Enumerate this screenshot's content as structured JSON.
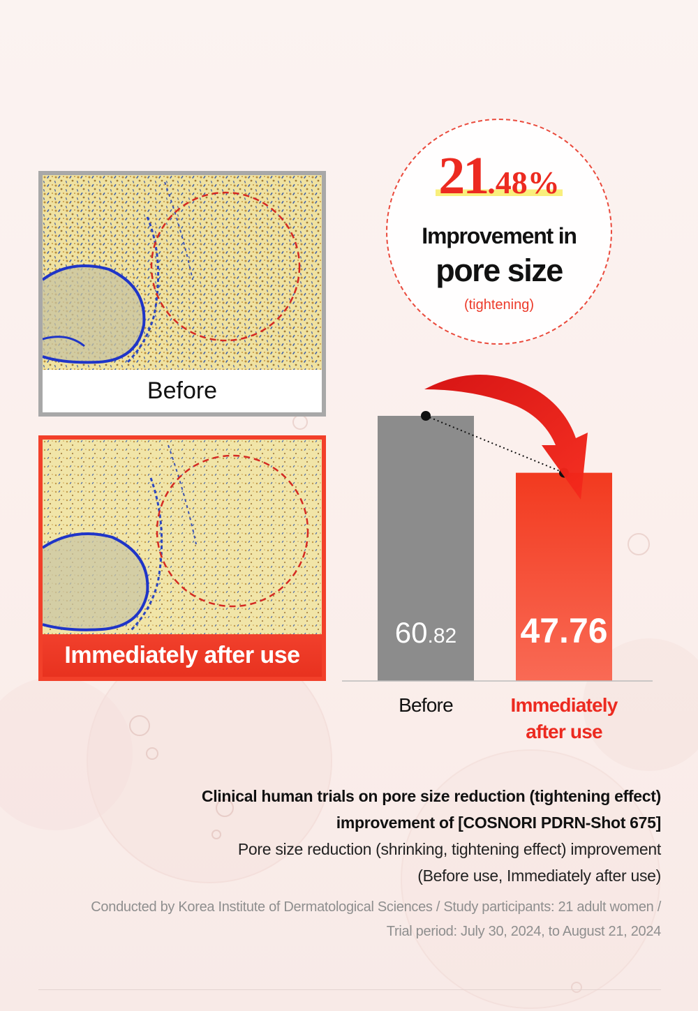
{
  "badge": {
    "percent_integer": "21",
    "percent_decimal": ".48%",
    "line1": "Improvement in",
    "line2": "pore size",
    "note": "(tightening)"
  },
  "photos": {
    "before_caption": "Before",
    "after_caption": "Immediately after use"
  },
  "chart_data": {
    "type": "bar",
    "categories": [
      "Before",
      "Immediately after use"
    ],
    "category_labels": [
      "Before",
      "Immediately\nafter use"
    ],
    "values": [
      60.82,
      47.76
    ],
    "value_labels": [
      {
        "integer": "60",
        "decimal": ".82"
      },
      {
        "integer": "47.76",
        "decimal": ""
      }
    ],
    "ylim": [
      0,
      60.82
    ],
    "grid": false,
    "legend": "none",
    "colors": [
      "#8c8c8c",
      "#f53a22"
    ],
    "arrow_color": "#f21d14"
  },
  "footnote": {
    "title_lines": [
      "Clinical human trials on pore size reduction (tightening effect)",
      "improvement of [COSNORI PDRN-Shot 675]"
    ],
    "desc_lines": [
      "Pore size reduction (shrinking, tightening effect) improvement",
      "(Before use, Immediately after use)"
    ],
    "meta_lines": [
      "Conducted by Korea Institute of Dermatological Sciences / Study participants: 21 adult women /",
      "Trial period: July 30, 2024, to August 21, 2024"
    ]
  }
}
